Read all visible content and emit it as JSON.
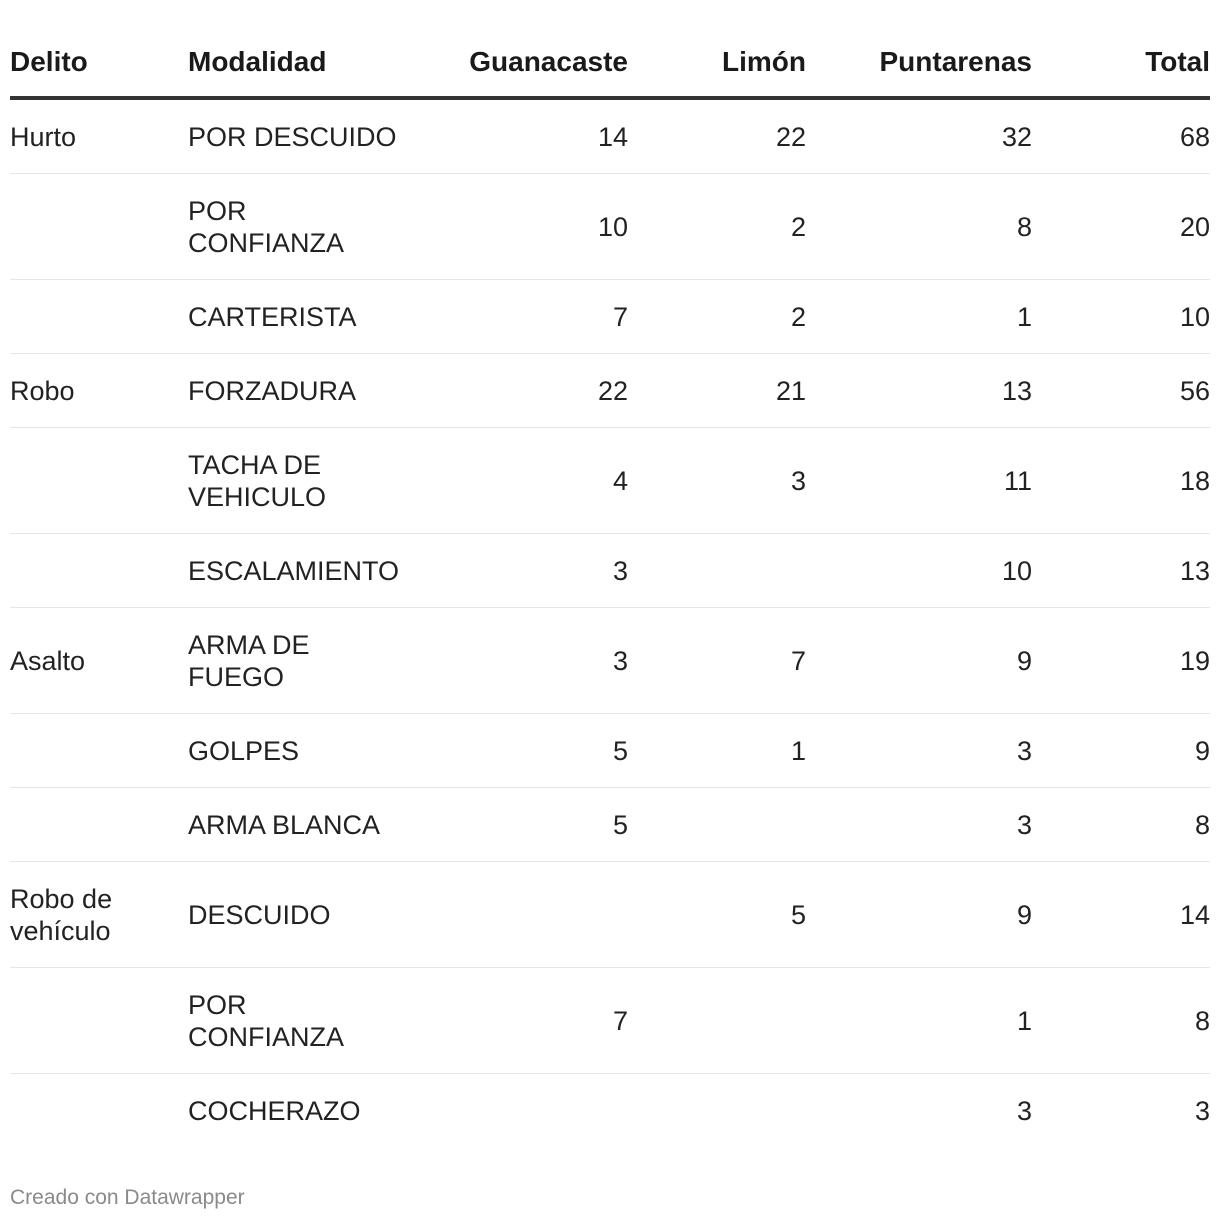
{
  "chart_data": {
    "type": "table",
    "columns": [
      "Delito",
      "Modalidad",
      "Guanacaste",
      "Limón",
      "Puntarenas",
      "Total"
    ],
    "rows": [
      {
        "delito": "Hurto",
        "modalidad": "POR DESCUIDO",
        "guanacaste": "14",
        "limon": "22",
        "puntarenas": "32",
        "total": "68",
        "lines": 1
      },
      {
        "delito": "",
        "modalidad": "POR CONFIANZA",
        "guanacaste": "10",
        "limon": "2",
        "puntarenas": "8",
        "total": "20",
        "lines": 2
      },
      {
        "delito": "",
        "modalidad": "CARTERISTA",
        "guanacaste": "7",
        "limon": "2",
        "puntarenas": "1",
        "total": "10",
        "lines": 1
      },
      {
        "delito": "Robo",
        "modalidad": "FORZADURA",
        "guanacaste": "22",
        "limon": "21",
        "puntarenas": "13",
        "total": "56",
        "lines": 1
      },
      {
        "delito": "",
        "modalidad": "TACHA DE VEHICULO",
        "guanacaste": "4",
        "limon": "3",
        "puntarenas": "11",
        "total": "18",
        "lines": 2
      },
      {
        "delito": "",
        "modalidad": "ESCALAMIENTO",
        "guanacaste": "3",
        "limon": "",
        "puntarenas": "10",
        "total": "13",
        "lines": 1
      },
      {
        "delito": "Asalto",
        "modalidad": "ARMA DE FUEGO",
        "guanacaste": "3",
        "limon": "7",
        "puntarenas": "9",
        "total": "19",
        "lines": 2
      },
      {
        "delito": "",
        "modalidad": "GOLPES",
        "guanacaste": "5",
        "limon": "1",
        "puntarenas": "3",
        "total": "9",
        "lines": 1
      },
      {
        "delito": "",
        "modalidad": "ARMA BLANCA",
        "guanacaste": "5",
        "limon": "",
        "puntarenas": "3",
        "total": "8",
        "lines": 1
      },
      {
        "delito": "Robo de vehículo",
        "modalidad": "DESCUIDO",
        "guanacaste": "",
        "limon": "5",
        "puntarenas": "9",
        "total": "14",
        "lines": 2
      },
      {
        "delito": "",
        "modalidad": "POR CONFIANZA",
        "guanacaste": "7",
        "limon": "",
        "puntarenas": "1",
        "total": "8",
        "lines": 2
      },
      {
        "delito": "",
        "modalidad": "COCHERAZO",
        "guanacaste": "",
        "limon": "",
        "puntarenas": "3",
        "total": "3",
        "lines": 1
      }
    ]
  },
  "footer": "Creado con Datawrapper"
}
